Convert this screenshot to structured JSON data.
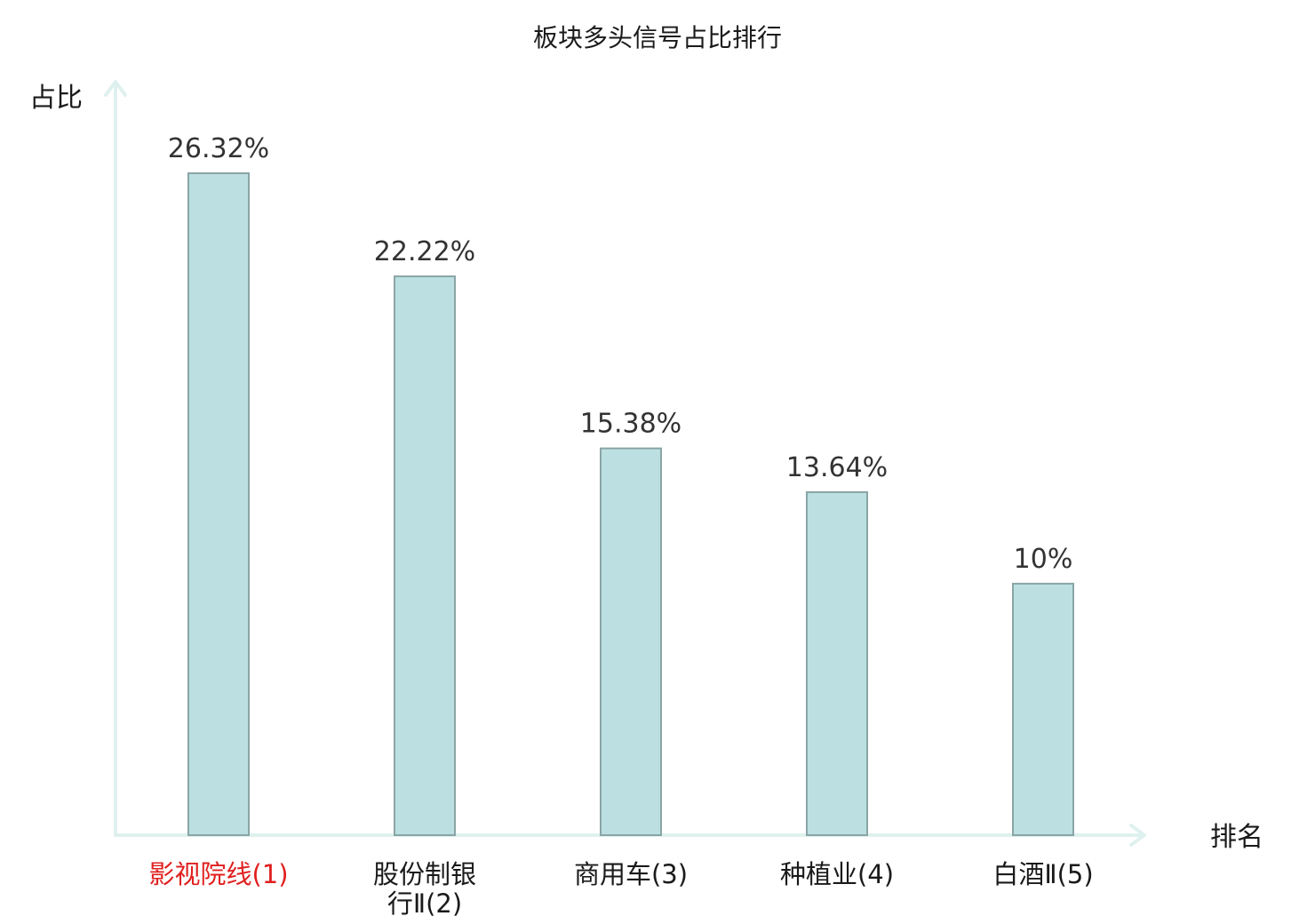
{
  "colors": {
    "bar_fill": "#bce0e2",
    "bar_stroke": "#8aa5a6",
    "axis": "#dff1ee",
    "highlight": "#e02020",
    "text": "#1a1a1a",
    "value_text": "#333333"
  },
  "chart_data": {
    "type": "bar",
    "title": "板块多头信号占比排行",
    "xlabel": "排名",
    "ylabel": "占比",
    "categories": [
      {
        "lines": [
          "影视院线(1)"
        ],
        "highlight": true
      },
      {
        "lines": [
          "股份制银",
          "行Ⅱ(2)"
        ],
        "highlight": false
      },
      {
        "lines": [
          "商用车(3)"
        ],
        "highlight": false
      },
      {
        "lines": [
          "种植业(4)"
        ],
        "highlight": false
      },
      {
        "lines": [
          "白酒Ⅱ(5)"
        ],
        "highlight": false
      }
    ],
    "values": [
      26.32,
      22.22,
      15.38,
      13.64,
      10
    ],
    "value_labels": [
      "26.32%",
      "22.22%",
      "15.38%",
      "13.64%",
      "10%"
    ],
    "ylim": [
      0,
      26.32
    ],
    "grid": false,
    "legend": "none"
  }
}
